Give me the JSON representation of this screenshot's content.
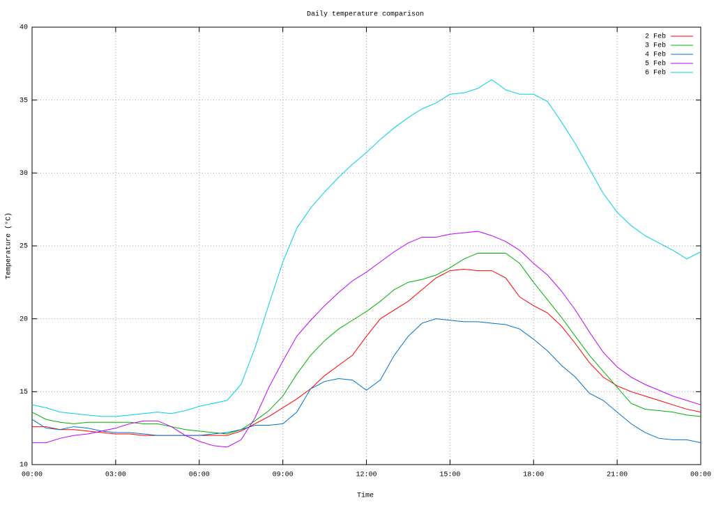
{
  "chart_data": {
    "type": "line",
    "title": "Daily temperature comparison",
    "x_label": "Time",
    "y_label": "Temperature (°C)",
    "x": [
      0,
      0.5,
      1,
      1.5,
      2,
      2.5,
      3,
      3.5,
      4,
      4.5,
      5,
      5.5,
      6,
      6.5,
      7,
      7.5,
      8,
      8.5,
      9,
      9.5,
      10,
      10.5,
      11,
      11.5,
      12,
      12.5,
      13,
      13.5,
      14,
      14.5,
      15,
      15.5,
      16,
      16.5,
      17,
      17.5,
      18,
      18.5,
      19,
      19.5,
      20,
      20.5,
      21,
      21.5,
      22,
      22.5,
      23,
      23.5,
      24
    ],
    "xlim": [
      0,
      24
    ],
    "xticks": [
      {
        "value": 0,
        "label": "00:00"
      },
      {
        "value": 3,
        "label": "03:00"
      },
      {
        "value": 6,
        "label": "06:00"
      },
      {
        "value": 9,
        "label": "09:00"
      },
      {
        "value": 12,
        "label": "12:00"
      },
      {
        "value": 15,
        "label": "15:00"
      },
      {
        "value": 18,
        "label": "18:00"
      },
      {
        "value": 21,
        "label": "21:00"
      },
      {
        "value": 24,
        "label": "00:00"
      }
    ],
    "ylim": [
      10,
      40
    ],
    "yticks": [
      10,
      15,
      20,
      25,
      30,
      35,
      40
    ],
    "grid": true,
    "legend": "top-right",
    "series": [
      {
        "name": "2 Feb",
        "color": "#ff0000",
        "values": [
          12.6,
          12.6,
          12.4,
          12.4,
          12.3,
          12.2,
          12.1,
          12.1,
          12.0,
          12.0,
          12.0,
          12.0,
          12.0,
          12.0,
          12.0,
          12.3,
          12.8,
          13.3,
          13.9,
          14.5,
          15.2,
          16.1,
          16.8,
          17.5,
          18.8,
          20.0,
          20.6,
          21.2,
          22.0,
          22.8,
          23.3,
          23.4,
          23.3,
          23.3,
          22.8,
          21.5,
          20.9,
          20.4,
          19.5,
          18.3,
          17.0,
          16.0,
          15.4,
          15.0,
          14.7,
          14.4,
          14.1,
          13.8,
          13.6
        ]
      },
      {
        "name": "3 Feb",
        "color": "#00b000",
        "values": [
          13.6,
          13.1,
          12.9,
          12.8,
          12.9,
          12.9,
          12.9,
          12.9,
          12.8,
          12.8,
          12.6,
          12.4,
          12.3,
          12.2,
          12.1,
          12.4,
          13.0,
          13.7,
          14.7,
          16.2,
          17.5,
          18.5,
          19.3,
          19.9,
          20.5,
          21.2,
          22.0,
          22.5,
          22.7,
          23.0,
          23.5,
          24.1,
          24.5,
          24.5,
          24.5,
          23.8,
          22.5,
          21.3,
          20.1,
          18.8,
          17.5,
          16.4,
          15.3,
          14.2,
          13.8,
          13.7,
          13.6,
          13.4,
          13.3
        ]
      },
      {
        "name": "4 Feb",
        "color": "#0070d0",
        "values": [
          13.1,
          12.5,
          12.4,
          12.6,
          12.5,
          12.3,
          12.2,
          12.2,
          12.1,
          12.0,
          12.0,
          12.0,
          12.0,
          12.1,
          12.2,
          12.4,
          12.7,
          12.7,
          12.8,
          13.6,
          15.2,
          15.7,
          15.9,
          15.8,
          15.1,
          15.8,
          17.5,
          18.8,
          19.7,
          20.0,
          19.9,
          19.8,
          19.8,
          19.7,
          19.6,
          19.3,
          18.6,
          17.8,
          16.8,
          16.0,
          14.9,
          14.4,
          13.6,
          12.8,
          12.2,
          11.8,
          11.7,
          11.7,
          11.5
        ]
      },
      {
        "name": "5 Feb",
        "color": "#c000ff",
        "values": [
          11.5,
          11.5,
          11.8,
          12.0,
          12.1,
          12.3,
          12.5,
          12.8,
          13.0,
          13.0,
          12.6,
          12.0,
          11.6,
          11.3,
          11.2,
          11.7,
          13.2,
          15.3,
          17.1,
          18.8,
          19.9,
          20.9,
          21.8,
          22.6,
          23.2,
          23.9,
          24.6,
          25.2,
          25.6,
          25.6,
          25.8,
          25.9,
          26.0,
          25.7,
          25.3,
          24.7,
          23.8,
          23.0,
          21.9,
          20.6,
          19.1,
          17.7,
          16.7,
          16.0,
          15.5,
          15.1,
          14.7,
          14.4,
          14.1
        ]
      },
      {
        "name": "6 Feb",
        "color": "#00d0e0",
        "values": [
          14.1,
          13.9,
          13.6,
          13.5,
          13.4,
          13.3,
          13.3,
          13.4,
          13.5,
          13.6,
          13.5,
          13.7,
          14.0,
          14.2,
          14.4,
          15.5,
          18.0,
          21.0,
          23.9,
          26.2,
          27.6,
          28.7,
          29.7,
          30.6,
          31.4,
          32.3,
          33.1,
          33.8,
          34.4,
          34.8,
          35.4,
          35.5,
          35.8,
          36.4,
          35.7,
          35.4,
          35.4,
          34.9,
          33.5,
          32.0,
          30.3,
          28.6,
          27.3,
          26.4,
          25.7,
          25.2,
          24.7,
          24.1,
          24.6
        ]
      }
    ]
  }
}
